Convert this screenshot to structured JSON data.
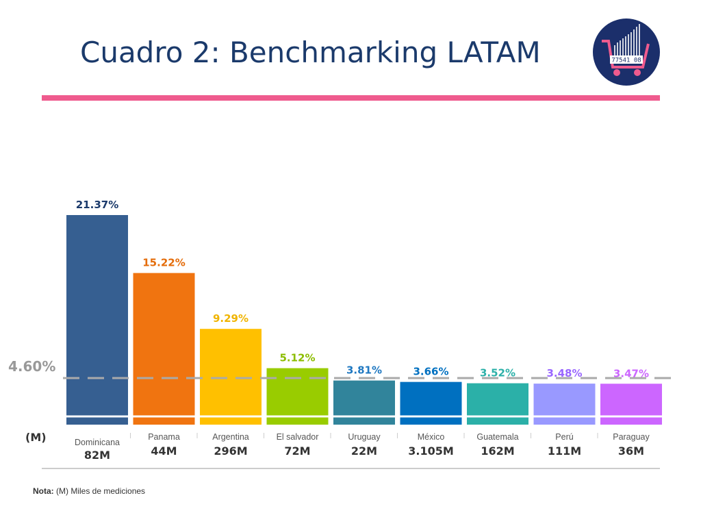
{
  "title": "Cuadro 2: Benchmarking LATAM",
  "note": {
    "label": "Nota:",
    "text": "(M) Miles de mediciones"
  },
  "logo": {
    "icon": "shopping-cart-barcode-icon",
    "code": "77541 08",
    "colors": {
      "circle": "#1b2f6b",
      "cart": "#ef5b8e"
    }
  },
  "chart_data": {
    "type": "bar",
    "categories": [
      "Dominicana",
      "Panama",
      "Argentina",
      "El salvador",
      "Uruguay",
      "México",
      "Guatemala",
      "Perú",
      "Paraguay"
    ],
    "values": [
      21.37,
      15.22,
      9.29,
      5.12,
      3.81,
      3.66,
      3.52,
      3.48,
      3.47
    ],
    "value_labels": [
      "21.37%",
      "15.22%",
      "9.29%",
      "5.12%",
      "3.81%",
      "3.66%",
      "3.52%",
      "3.48%",
      "3.47%"
    ],
    "volumes": [
      "82M",
      "44M",
      "296M",
      "72M",
      "22M",
      "3.105M",
      "162M",
      "111M",
      "36M"
    ],
    "volume_unit_label": "(M)",
    "colors": [
      "#365f91",
      "#f07410",
      "#ffc000",
      "#99cc00",
      "#31849b",
      "#0070c0",
      "#2bb0a8",
      "#9999ff",
      "#cc66ff"
    ],
    "label_colors": [
      "#1b3a6b",
      "#e46c0a",
      "#f0b400",
      "#8cbd00",
      "#1f78c1",
      "#0070c0",
      "#2bb0a8",
      "#9966ff",
      "#cc66ff"
    ],
    "reference_line": {
      "value": 4.6,
      "label": "4.60%",
      "color": "#aaaaaa"
    },
    "ylim": [
      0,
      22
    ]
  }
}
